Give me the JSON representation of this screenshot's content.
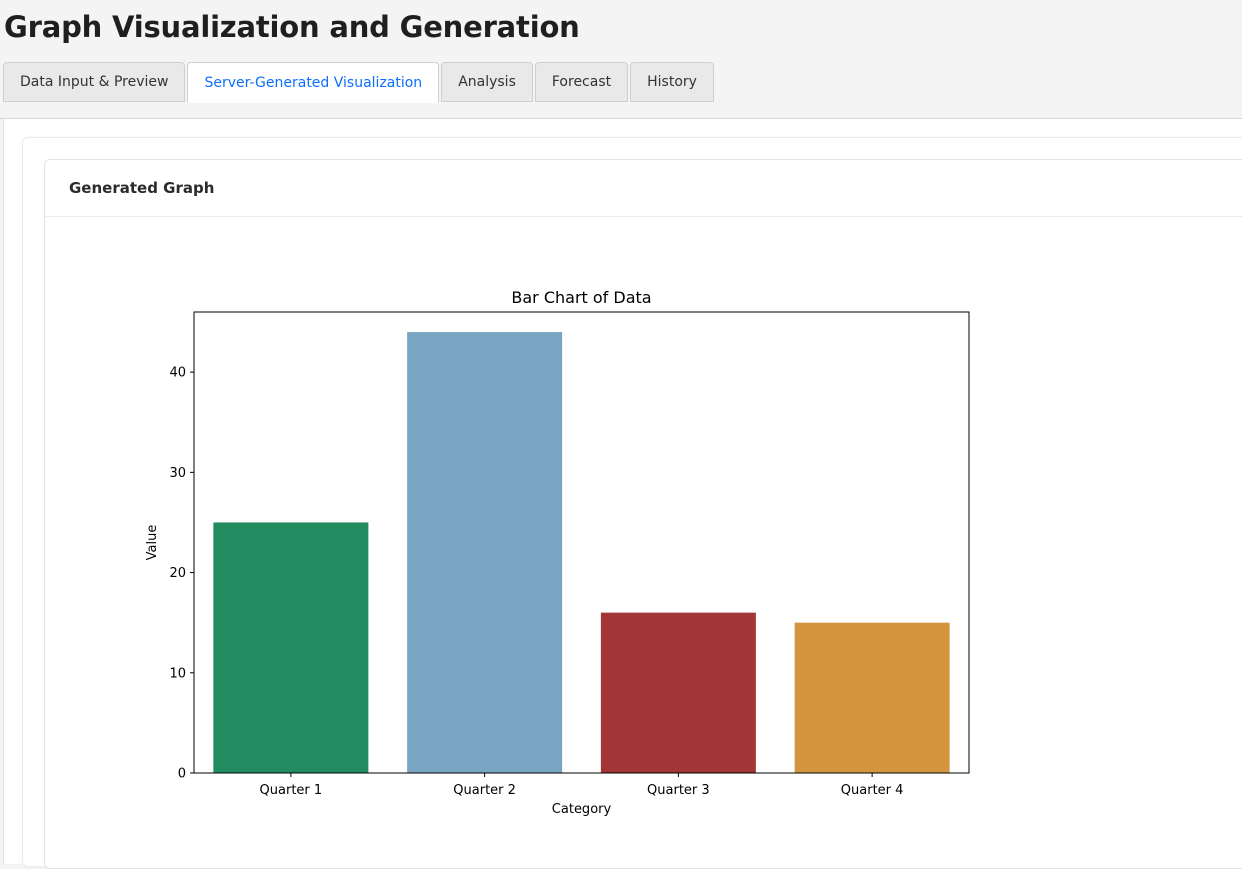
{
  "page": {
    "title": "Graph Visualization and Generation"
  },
  "tabs": [
    {
      "label": "Data Input & Preview",
      "active": false
    },
    {
      "label": "Server-Generated Visualization",
      "active": true
    },
    {
      "label": "Analysis",
      "active": false
    },
    {
      "label": "Forecast",
      "active": false
    },
    {
      "label": "History",
      "active": false
    }
  ],
  "card": {
    "header": "Generated Graph"
  },
  "colors": {
    "tab_active_text": "#0d6efd"
  },
  "chart_data": {
    "type": "bar",
    "title": "Bar Chart of Data",
    "xlabel": "Category",
    "ylabel": "Value",
    "categories": [
      "Quarter 1",
      "Quarter 2",
      "Quarter 3",
      "Quarter 4"
    ],
    "values": [
      25,
      44,
      16,
      15
    ],
    "bar_colors": [
      "#228b5f",
      "#78a6c2",
      "#a23535",
      "#d3963f"
    ],
    "ylim": [
      0,
      46
    ],
    "yticks": [
      0,
      10,
      20,
      30,
      40
    ],
    "grid": false,
    "legend": "none"
  }
}
